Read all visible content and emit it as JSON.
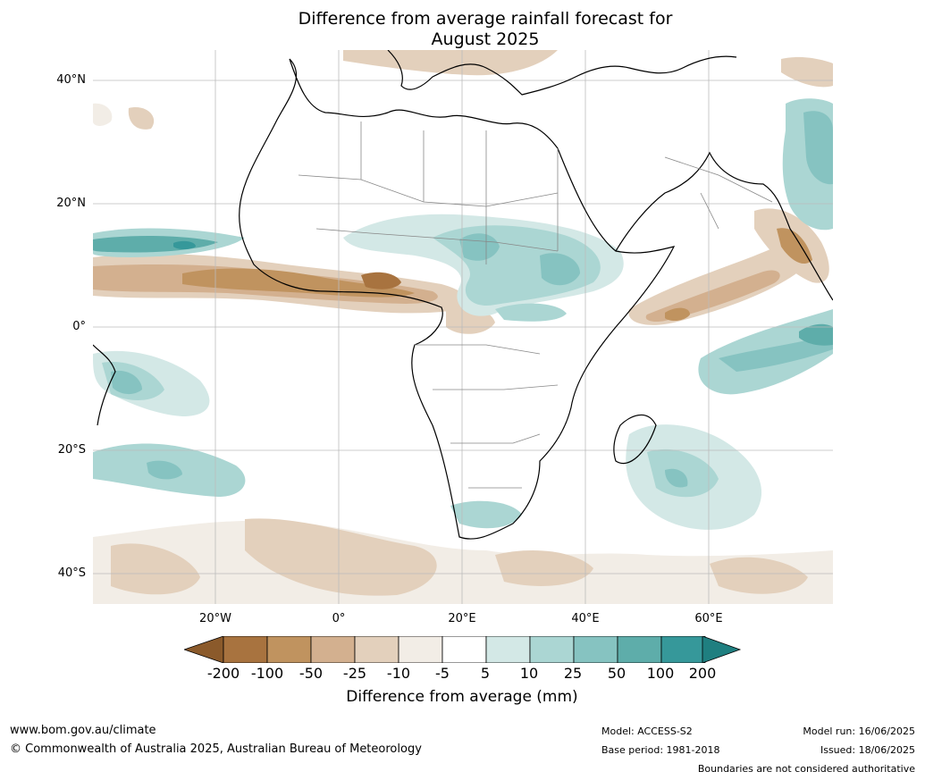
{
  "title_line1": "Difference from average rainfall forecast for",
  "title_line2": "August 2025",
  "lat_labels": [
    "40°N",
    "20°N",
    "0°",
    "20°S",
    "40°S"
  ],
  "lon_labels": [
    "20°W",
    "0°",
    "20°E",
    "40°E",
    "60°E"
  ],
  "colorbar": {
    "title": "Difference from average (mm)",
    "ticks": [
      "-200",
      "-100",
      "-50",
      "-25",
      "-10",
      "-5",
      "5",
      "10",
      "25",
      "50",
      "100",
      "200"
    ],
    "colors": {
      "lt_-200": "#8b5a2b",
      "-200_-100": "#a8733f",
      "-100_-50": "#c0935f",
      "-50_-25": "#d3b08f",
      "-25_-10": "#e3d0bc",
      "-10_-5": "#f2ede6",
      "-5_5": "#ffffff",
      "5_10": "#d3e8e6",
      "10_25": "#abd6d3",
      "25_50": "#86c3c1",
      "50_100": "#5eadaa",
      "100_200": "#36989a",
      "gt_200": "#1f7f80"
    }
  },
  "footer": {
    "url": "www.bom.gov.au/climate",
    "copyright": "© Commonwealth of Australia 2025, Australian Bureau of Meteorology",
    "model": "Model: ACCESS-S2",
    "base_period": "Base period: 1981-2018",
    "model_run": "Model run: 16/06/2025",
    "issued": "Issued: 18/06/2025",
    "disclaimer": "Boundaries are not considered authoritative"
  }
}
